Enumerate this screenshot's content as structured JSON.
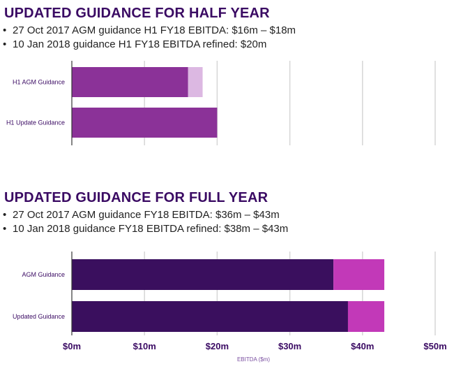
{
  "sections": [
    {
      "heading": "UPDATED GUIDANCE FOR HALF YEAR",
      "bullets": [
        "27 Oct 2017 AGM guidance H1 FY18 EBITDA: $16m – $18m",
        "10 Jan 2018 guidance H1 FY18 EBITDA refined: $20m"
      ]
    },
    {
      "heading": "UPDATED GUIDANCE FOR FULL YEAR",
      "bullets": [
        "27 Oct 2017 AGM guidance FY18 EBITDA: $36m – $43m",
        "10 Jan 2018 guidance FY18 EBITDA refined: $38m – $43m"
      ]
    }
  ],
  "chart_data": [
    {
      "type": "bar",
      "orientation": "horizontal",
      "stacked": true,
      "categories": [
        "H1 AGM Guidance",
        "H1 Update Guidance"
      ],
      "series": [
        {
          "values": [
            16,
            20
          ],
          "color": "#8b3298"
        },
        {
          "values": [
            2,
            0
          ],
          "color": "#dcb8e2"
        }
      ],
      "xlim": [
        0,
        50
      ],
      "grid": "vertical"
    },
    {
      "type": "bar",
      "orientation": "horizontal",
      "stacked": true,
      "categories": [
        "AGM Guidance",
        "Updated Guidance"
      ],
      "series": [
        {
          "values": [
            36,
            38
          ],
          "color": "#3a0f5e"
        },
        {
          "values": [
            7,
            5
          ],
          "color": "#c239b8"
        }
      ],
      "xlim": [
        0,
        50
      ],
      "grid": "vertical",
      "tick_labels": [
        "$0m",
        "$10m",
        "$20m",
        "$30m",
        "$40m",
        "$50m"
      ],
      "xlabel": "EBITDA ($m)"
    }
  ]
}
